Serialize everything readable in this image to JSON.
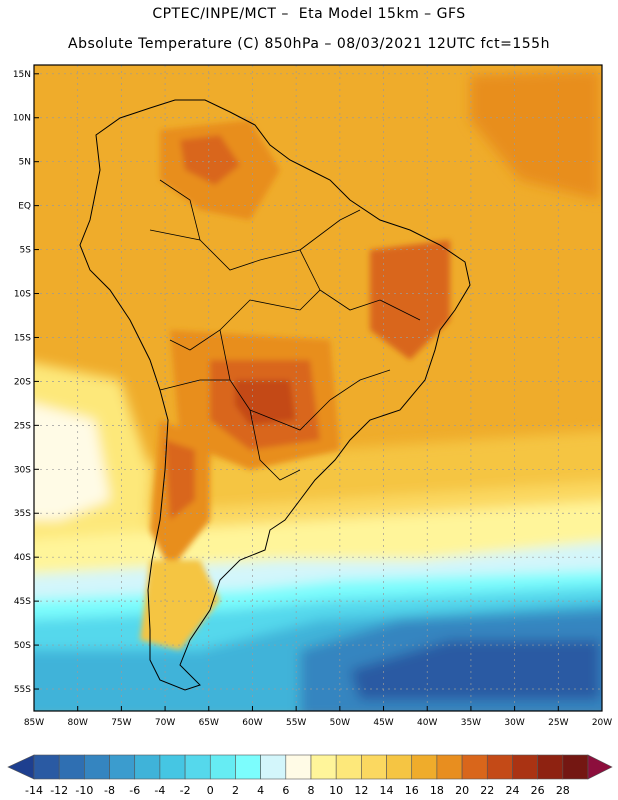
{
  "header": {
    "line1": "CPTEC/INPE/MCT –  Eta Model 15km – GFS",
    "line2": "Absolute Temperature (C) 850hPa – 08/03/2021 12UTC fct=155h"
  },
  "map": {
    "lon_range": [
      -85,
      -20
    ],
    "lat_range": [
      -57.5,
      16
    ],
    "lat_labels": [
      "15N",
      "10N",
      "5N",
      "EQ",
      "5S",
      "10S",
      "15S",
      "20S",
      "25S",
      "30S",
      "35S",
      "40S",
      "45S",
      "50S",
      "55S"
    ],
    "lat_values": [
      15,
      10,
      5,
      0,
      -5,
      -10,
      -15,
      -20,
      -25,
      -30,
      -35,
      -40,
      -45,
      -50,
      -55
    ],
    "lon_labels": [
      "85W",
      "80W",
      "75W",
      "70W",
      "65W",
      "60W",
      "55W",
      "50W",
      "45W",
      "40W",
      "35W",
      "30W",
      "25W",
      "20W"
    ],
    "lon_values": [
      -85,
      -80,
      -75,
      -70,
      -65,
      -60,
      -55,
      -50,
      -45,
      -40,
      -35,
      -30,
      -25,
      -20
    ]
  },
  "colorbar": {
    "labels": [
      "-14",
      "-12",
      "-10",
      "-8",
      "-6",
      "-4",
      "-2",
      "0",
      "2",
      "4",
      "6",
      "8",
      "10",
      "12",
      "14",
      "16",
      "18",
      "20",
      "22",
      "24",
      "26",
      "28"
    ],
    "colors": [
      "#1e3f8f",
      "#2a5aa3",
      "#2f6fb2",
      "#3585c0",
      "#3b9cce",
      "#3fb3d9",
      "#45c6e3",
      "#55d8ec",
      "#66ecf3",
      "#7cfdfd",
      "#d3f6fb",
      "#fffbe6",
      "#fff59a",
      "#fde87a",
      "#fbd860",
      "#f5c543",
      "#efac2b",
      "#e88e1f",
      "#d9661b",
      "#c44a17",
      "#aa3313",
      "#8e2211",
      "#741712",
      "#8c0e3c"
    ]
  }
}
